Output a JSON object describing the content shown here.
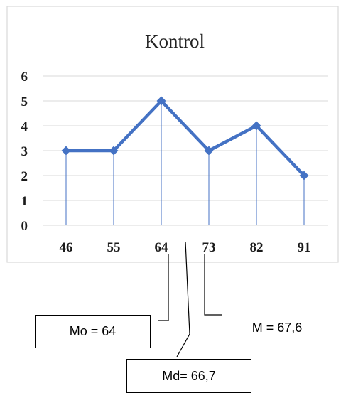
{
  "chart_data": {
    "type": "line",
    "title": "Kontrol",
    "categories": [
      "46",
      "55",
      "64",
      "73",
      "82",
      "91"
    ],
    "x": [
      46,
      55,
      64,
      73,
      82,
      91
    ],
    "values": [
      3,
      3,
      5,
      3,
      4,
      2
    ],
    "ylim": [
      0,
      6
    ],
    "yticks": [
      "0",
      "1",
      "2",
      "3",
      "4",
      "5",
      "6"
    ],
    "grid": true,
    "drop_lines": true,
    "color": "#4472c4",
    "annotations": [
      {
        "label": "Mo = 64",
        "x": 64
      },
      {
        "label": "Md= 66,7",
        "x": 66.7
      },
      {
        "label": "M = 67,6",
        "x": 67.6
      }
    ]
  }
}
